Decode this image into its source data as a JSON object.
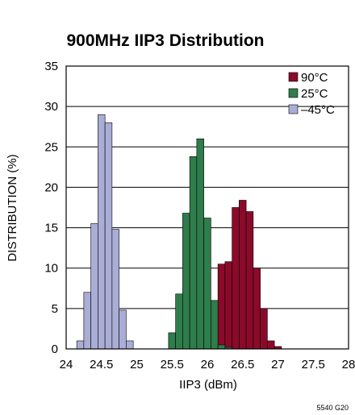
{
  "chart_data": {
    "type": "bar",
    "title": "900MHz IIP3 Distribution",
    "xlabel": "IIP3 (dBm)",
    "ylabel": "DISTRIBUTION (%)",
    "xlim": [
      24,
      28
    ],
    "ylim": [
      0,
      35
    ],
    "xticks": [
      "24",
      "24.5",
      "25",
      "25.5",
      "26",
      "26.5",
      "27",
      "27.5",
      "28"
    ],
    "yticks": [
      "0",
      "5",
      "10",
      "15",
      "20",
      "25",
      "30",
      "35"
    ],
    "grid": "horizontal",
    "legend_position": "top-right",
    "bin_width": 0.1,
    "figure_id": "5540 G20",
    "series": [
      {
        "name": "90°C",
        "color": "#8b0a2a",
        "x": [
          26.1,
          26.2,
          26.3,
          26.4,
          26.5,
          26.6,
          26.7,
          26.8,
          26.9,
          27.0
        ],
        "values": [
          0.5,
          10.5,
          10.8,
          17.5,
          18.4,
          17.0,
          10.0,
          5.0,
          1.0,
          0.3
        ]
      },
      {
        "name": "25°C",
        "color": "#2e7d4a",
        "x": [
          25.5,
          25.6,
          25.7,
          25.8,
          25.9,
          26.0,
          26.1,
          26.2,
          26.3
        ],
        "values": [
          2.0,
          6.8,
          16.8,
          23.8,
          26.0,
          16.2,
          6.0,
          0.5,
          0.2
        ]
      },
      {
        "name": "–45°C",
        "color": "#aaaed6",
        "x": [
          24.2,
          24.3,
          24.4,
          24.5,
          24.6,
          24.7,
          24.8,
          24.9
        ],
        "values": [
          1.0,
          7.0,
          15.5,
          29.0,
          28.0,
          14.8,
          4.8,
          1.0
        ]
      }
    ]
  }
}
